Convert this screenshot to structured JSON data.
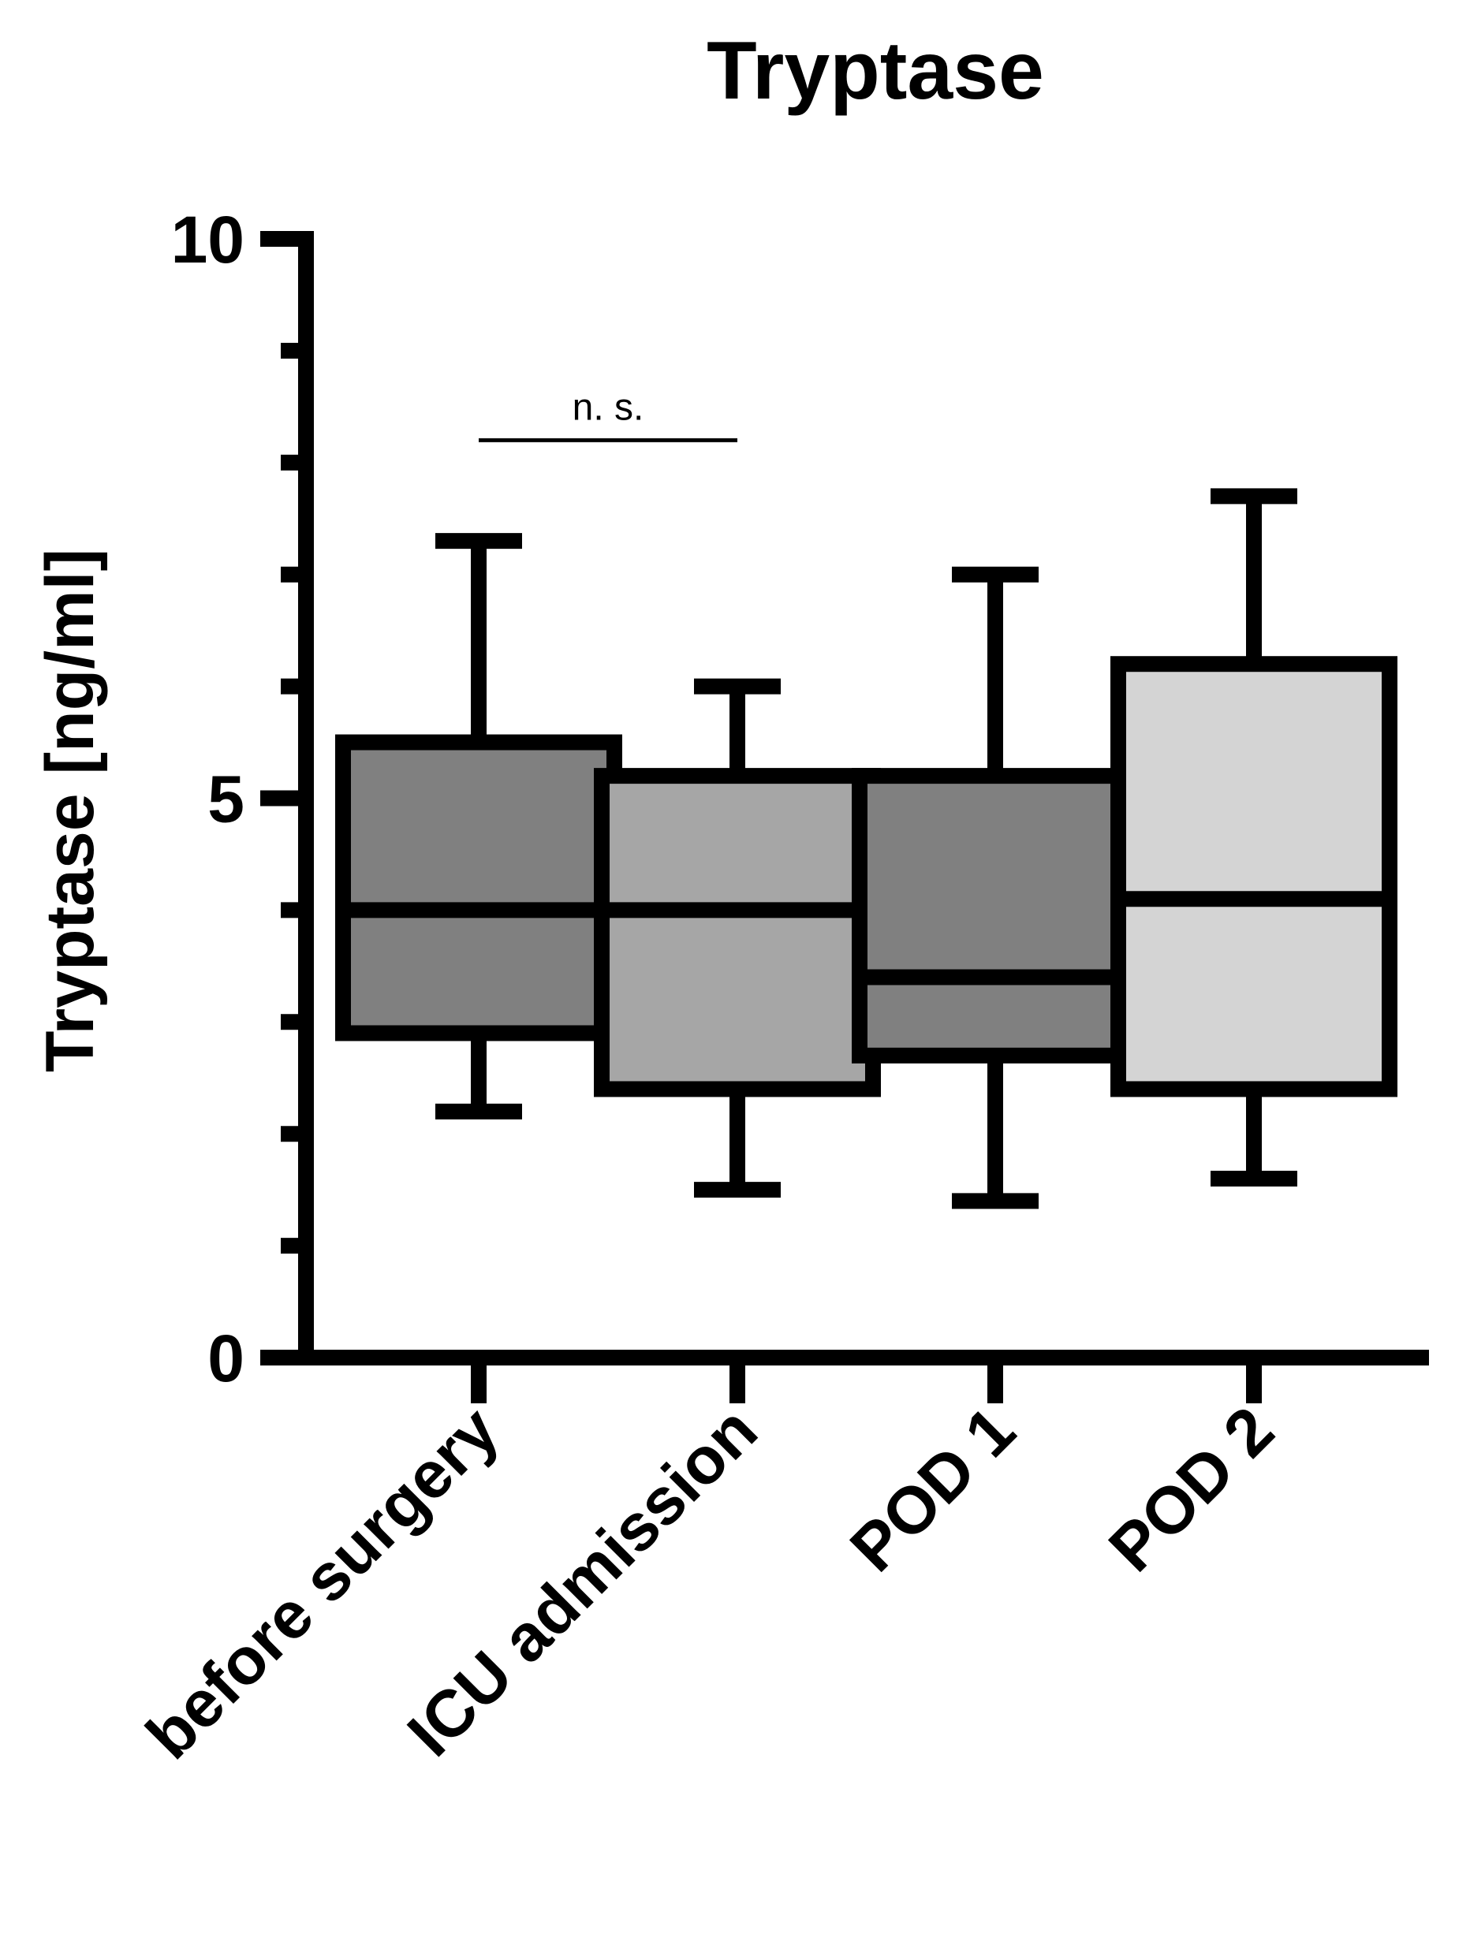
{
  "chart_data": {
    "type": "box",
    "title": "Tryptase",
    "xlabel": "",
    "ylabel": "Tryptase [ng/ml]",
    "ylim": [
      0,
      10
    ],
    "yticks_major": [
      0,
      5,
      10
    ],
    "yticks_minor": [
      1,
      2,
      3,
      4,
      6,
      7,
      8,
      9
    ],
    "grid": false,
    "categories": [
      "before surgery",
      "ICU admission",
      "POD 1",
      "POD 2"
    ],
    "boxes": [
      {
        "name": "before surgery",
        "min": 2.2,
        "q1": 2.9,
        "median": 4.0,
        "q3": 5.5,
        "max": 7.3,
        "color": "#808080"
      },
      {
        "name": "ICU admission",
        "min": 1.5,
        "q1": 2.4,
        "median": 4.0,
        "q3": 5.2,
        "max": 6.0,
        "color": "#a6a6a6"
      },
      {
        "name": "POD 1",
        "min": 1.4,
        "q1": 2.7,
        "median": 3.4,
        "q3": 5.2,
        "max": 7.0,
        "color": "#808080"
      },
      {
        "name": "POD 2",
        "min": 1.6,
        "q1": 2.4,
        "median": 4.1,
        "q3": 6.2,
        "max": 7.7,
        "color": "#d4d4d4"
      }
    ],
    "annotations": [
      {
        "text": "n. s.",
        "from": "before surgery",
        "to": "ICU admission",
        "y": 8.2
      }
    ]
  }
}
